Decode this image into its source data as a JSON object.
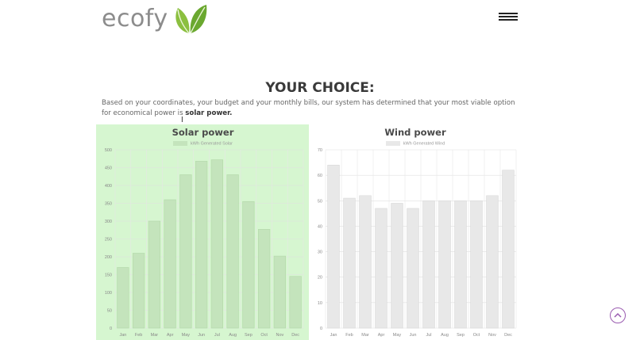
{
  "header": {
    "logo_text": "ecofy",
    "menu_icon": "hamburger-menu-icon"
  },
  "main": {
    "headline": "YOUR CHOICE:",
    "description_prefix": "Based on your coordinates, your budget and your monthly bills, our system has determined that your most viable option for economical power is ",
    "description_bold": "solar power."
  },
  "scroll_top_icon": "chevron-up-icon",
  "colors": {
    "solar_bg": "#d6f6d0",
    "solar_bar": "#c4e4bc",
    "wind_bar": "#e8e8e8",
    "accent": "#9a5bb0"
  },
  "chart_data": [
    {
      "type": "bar",
      "title": "Solar power",
      "categories": [
        "Jan",
        "Feb",
        "Mar",
        "Apr",
        "May",
        "Jun",
        "Jul",
        "Aug",
        "Sep",
        "Oct",
        "Nov",
        "Dec"
      ],
      "series": [
        {
          "name": "kWh Generated Solar",
          "values": [
            170,
            210,
            300,
            360,
            430,
            468,
            472,
            430,
            355,
            277,
            202,
            145
          ]
        }
      ],
      "yticks": [
        0,
        50,
        100,
        150,
        200,
        250,
        300,
        350,
        400,
        450,
        500
      ],
      "ylim": [
        0,
        500
      ],
      "grid": true,
      "legend": "top"
    },
    {
      "type": "bar",
      "title": "Wind power",
      "categories": [
        "Jan",
        "Feb",
        "Mar",
        "Apr",
        "May",
        "Jun",
        "Jul",
        "Aug",
        "Sep",
        "Oct",
        "Nov",
        "Dec"
      ],
      "series": [
        {
          "name": "kWh Generated Wind",
          "values": [
            64,
            51,
            52,
            47,
            49,
            47,
            50,
            50,
            50,
            50,
            52,
            62
          ]
        }
      ],
      "yticks": [
        0,
        10,
        20,
        30,
        40,
        50,
        60,
        70
      ],
      "ylim": [
        0,
        70
      ],
      "grid": true,
      "legend": "top"
    }
  ]
}
